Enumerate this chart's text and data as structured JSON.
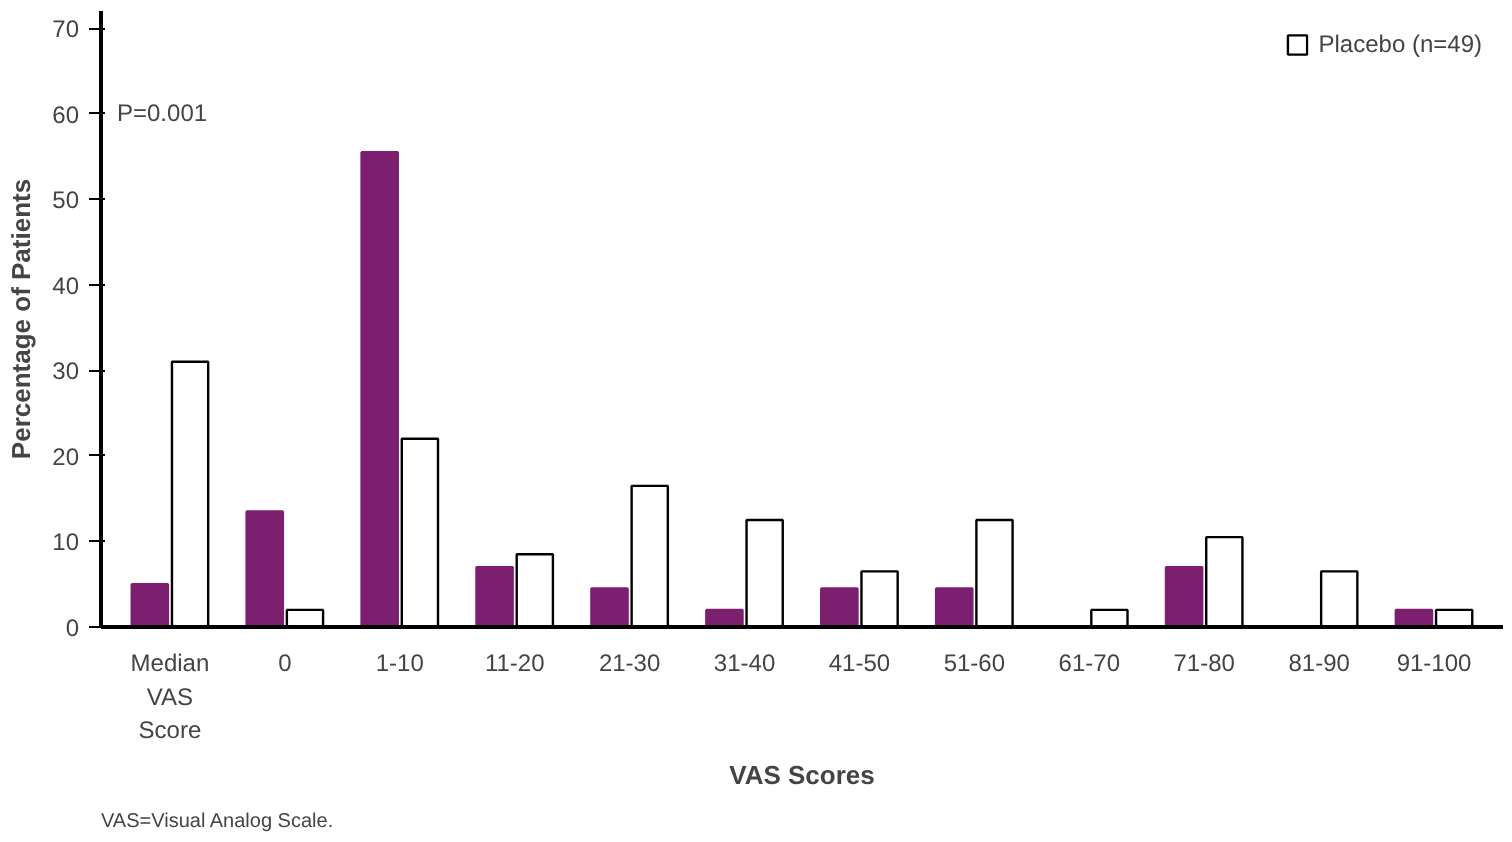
{
  "chart_data": {
    "type": "bar",
    "ylabel": "Percentage of Patients",
    "xlabel": "VAS Scores",
    "categories": [
      "Median VAS Score",
      "0",
      "1-10",
      "11-20",
      "21-30",
      "31-40",
      "41-50",
      "51-60",
      "61-70",
      "71-80",
      "81-90",
      "91-100"
    ],
    "series": [
      {
        "color": "#7b1f6e",
        "values": [
          5,
          13.5,
          55.5,
          7,
          4.5,
          2,
          4.5,
          4.5,
          0,
          7,
          0,
          2
        ]
      },
      {
        "name": "Placebo (n=49)",
        "color": "#ffffff",
        "values": [
          31,
          2,
          22,
          8.5,
          16.5,
          12.5,
          6.5,
          12.5,
          2,
          10.5,
          6.5,
          2
        ]
      }
    ],
    "ylim": [
      0,
      72
    ],
    "yticks": [
      0,
      10,
      20,
      30,
      40,
      50,
      60,
      70
    ],
    "grid": false,
    "legend": "top right",
    "annotations": [
      "P=0.001",
      "VAS=Visual Analog Scale."
    ]
  }
}
